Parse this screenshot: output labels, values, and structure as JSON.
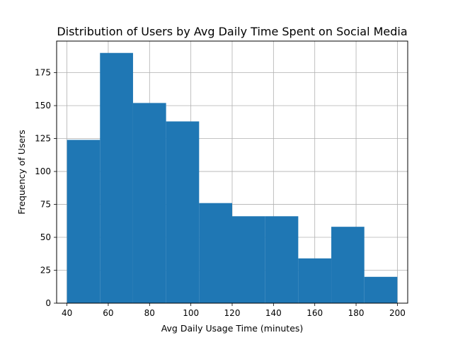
{
  "chart_data": {
    "type": "histogram",
    "title": "Distribution of Users by Avg Daily Time Spent on Social Media",
    "xlabel": "Avg Daily Usage Time (minutes)",
    "ylabel": "Frequency of Users",
    "xlim": [
      35,
      205
    ],
    "ylim": [
      0,
      199
    ],
    "bins": [
      {
        "start": 40,
        "end": 56,
        "count": 124
      },
      {
        "start": 56,
        "end": 72,
        "count": 190
      },
      {
        "start": 72,
        "end": 88,
        "count": 152
      },
      {
        "start": 88,
        "end": 104,
        "count": 138
      },
      {
        "start": 104,
        "end": 120,
        "count": 76
      },
      {
        "start": 120,
        "end": 136,
        "count": 66
      },
      {
        "start": 136,
        "end": 152,
        "count": 66
      },
      {
        "start": 152,
        "end": 168,
        "count": 34
      },
      {
        "start": 168,
        "end": 184,
        "count": 58
      },
      {
        "start": 184,
        "end": 200,
        "count": 20
      }
    ],
    "x_ticks": [
      "40",
      "60",
      "80",
      "100",
      "120",
      "140",
      "160",
      "180",
      "200"
    ],
    "y_ticks": [
      "0",
      "25",
      "50",
      "75",
      "100",
      "125",
      "150",
      "175"
    ],
    "grid": true,
    "bar_color": "#1f77b4"
  }
}
